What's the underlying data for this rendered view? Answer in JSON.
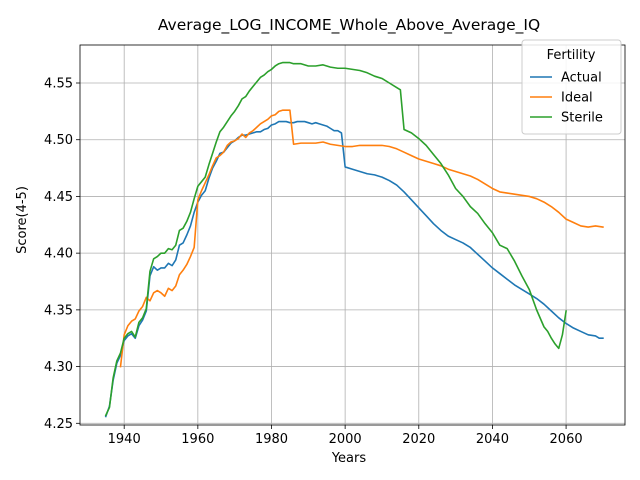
{
  "chart_data": {
    "type": "line",
    "title": "Average_LOG_INCOME_Whole_Above_Average_IQ",
    "xlabel": "Years",
    "ylabel": "Score(4-5)",
    "xlim": [
      1928,
      2076
    ],
    "ylim": [
      4.2485,
      4.5835
    ],
    "xticks": [
      1940,
      1960,
      1980,
      2000,
      2020,
      2040,
      2060
    ],
    "xtick_labels": [
      "1940",
      "1960",
      "1980",
      "2000",
      "2020",
      "2040",
      "2060"
    ],
    "yticks": [
      4.25,
      4.3,
      4.35,
      4.4,
      4.45,
      4.5,
      4.55
    ],
    "ytick_labels": [
      "4.25",
      "4.30",
      "4.35",
      "4.40",
      "4.45",
      "4.50",
      "4.55"
    ],
    "grid": true,
    "legend": {
      "title": "Fertility",
      "placement": "top-right"
    },
    "series": [
      {
        "name": "Actual",
        "color": "#1f77b4",
        "x": [
          1935,
          1936,
          1937,
          1938,
          1939,
          1940,
          1941,
          1942,
          1943,
          1944,
          1945,
          1946,
          1947,
          1948,
          1949,
          1950,
          1951,
          1952,
          1953,
          1954,
          1955,
          1956,
          1957,
          1958,
          1959,
          1960,
          1961,
          1962,
          1963,
          1964,
          1965,
          1966,
          1967,
          1968,
          1969,
          1970,
          1971,
          1972,
          1973,
          1974,
          1975,
          1976,
          1977,
          1978,
          1979,
          1980,
          1981,
          1982,
          1983,
          1984,
          1985,
          1986,
          1987,
          1988,
          1989,
          1990,
          1991,
          1992,
          1993,
          1994,
          1995,
          1996,
          1997,
          1998,
          1999,
          2000,
          2002,
          2004,
          2006,
          2008,
          2010,
          2012,
          2014,
          2016,
          2018,
          2020,
          2022,
          2024,
          2026,
          2028,
          2030,
          2032,
          2034,
          2036,
          2038,
          2040,
          2042,
          2044,
          2046,
          2048,
          2050,
          2052,
          2054,
          2056,
          2058,
          2060,
          2062,
          2064,
          2066,
          2068,
          2069,
          2070
        ],
        "values": [
          4.256,
          4.265,
          4.288,
          4.303,
          4.31,
          4.323,
          4.327,
          4.329,
          4.325,
          4.336,
          4.341,
          4.349,
          4.38,
          4.388,
          4.385,
          4.387,
          4.387,
          4.391,
          4.389,
          4.394,
          4.407,
          4.409,
          4.416,
          4.424,
          4.436,
          4.445,
          4.451,
          4.455,
          4.466,
          4.475,
          4.481,
          4.488,
          4.489,
          4.493,
          4.497,
          4.499,
          4.502,
          4.504,
          4.504,
          4.505,
          4.506,
          4.507,
          4.507,
          4.509,
          4.51,
          4.513,
          4.514,
          4.516,
          4.516,
          4.516,
          4.515,
          4.515,
          4.516,
          4.516,
          4.516,
          4.515,
          4.514,
          4.515,
          4.514,
          4.513,
          4.512,
          4.51,
          4.508,
          4.508,
          4.506,
          4.476,
          4.474,
          4.472,
          4.47,
          4.469,
          4.467,
          4.464,
          4.46,
          4.454,
          4.447,
          4.44,
          4.433,
          4.426,
          4.42,
          4.415,
          4.412,
          4.409,
          4.405,
          4.399,
          4.393,
          4.387,
          4.382,
          4.377,
          4.372,
          4.368,
          4.364,
          4.36,
          4.355,
          4.349,
          4.343,
          4.338,
          4.334,
          4.331,
          4.328,
          4.327,
          4.325,
          4.325
        ]
      },
      {
        "name": "Ideal",
        "color": "#ff7f0e",
        "x": [
          1939,
          1940,
          1941,
          1942,
          1943,
          1944,
          1945,
          1946,
          1947,
          1948,
          1949,
          1950,
          1951,
          1952,
          1953,
          1954,
          1955,
          1956,
          1957,
          1958,
          1959,
          1960,
          1961,
          1962,
          1963,
          1964,
          1965,
          1966,
          1967,
          1968,
          1969,
          1970,
          1971,
          1972,
          1973,
          1974,
          1975,
          1976,
          1977,
          1978,
          1979,
          1980,
          1981,
          1982,
          1983,
          1984,
          1985,
          1986,
          1988,
          1990,
          1992,
          1994,
          1996,
          1998,
          2000,
          2002,
          2004,
          2006,
          2008,
          2010,
          2012,
          2014,
          2016,
          2018,
          2020,
          2022,
          2024,
          2026,
          2028,
          2030,
          2032,
          2034,
          2036,
          2038,
          2040,
          2042,
          2044,
          2046,
          2048,
          2050,
          2052,
          2054,
          2056,
          2058,
          2060,
          2062,
          2064,
          2066,
          2068,
          2070
        ],
        "values": [
          4.3,
          4.328,
          4.336,
          4.34,
          4.342,
          4.349,
          4.353,
          4.361,
          4.358,
          4.365,
          4.367,
          4.365,
          4.362,
          4.369,
          4.367,
          4.371,
          4.381,
          4.385,
          4.39,
          4.397,
          4.405,
          4.447,
          4.455,
          4.462,
          4.469,
          4.477,
          4.484,
          4.486,
          4.489,
          4.495,
          4.498,
          4.499,
          4.501,
          4.505,
          4.502,
          4.506,
          4.508,
          4.511,
          4.514,
          4.516,
          4.518,
          4.521,
          4.522,
          4.525,
          4.526,
          4.526,
          4.526,
          4.496,
          4.497,
          4.497,
          4.497,
          4.498,
          4.496,
          4.495,
          4.494,
          4.494,
          4.495,
          4.495,
          4.495,
          4.495,
          4.494,
          4.492,
          4.489,
          4.486,
          4.483,
          4.481,
          4.479,
          4.477,
          4.474,
          4.472,
          4.47,
          4.468,
          4.465,
          4.461,
          4.457,
          4.454,
          4.453,
          4.452,
          4.451,
          4.45,
          4.448,
          4.445,
          4.441,
          4.436,
          4.43,
          4.427,
          4.424,
          4.423,
          4.424,
          4.423
        ]
      },
      {
        "name": "Sterile",
        "color": "#2ca02c",
        "x": [
          1935,
          1936,
          1937,
          1938,
          1939,
          1940,
          1941,
          1942,
          1943,
          1944,
          1945,
          1946,
          1947,
          1948,
          1949,
          1950,
          1951,
          1952,
          1953,
          1954,
          1955,
          1956,
          1957,
          1958,
          1959,
          1960,
          1961,
          1962,
          1963,
          1964,
          1965,
          1966,
          1967,
          1968,
          1969,
          1970,
          1971,
          1972,
          1973,
          1974,
          1975,
          1976,
          1977,
          1978,
          1979,
          1980,
          1981,
          1982,
          1983,
          1984,
          1985,
          1986,
          1988,
          1990,
          1992,
          1994,
          1996,
          1998,
          2000,
          2002,
          2004,
          2006,
          2008,
          2010,
          2012,
          2014,
          2015,
          2016,
          2018,
          2020,
          2022,
          2024,
          2026,
          2028,
          2030,
          2032,
          2034,
          2036,
          2038,
          2040,
          2042,
          2044,
          2046,
          2048,
          2050,
          2052,
          2054,
          2055,
          2056,
          2057,
          2058,
          2059,
          2060
        ],
        "values": [
          4.257,
          4.264,
          4.29,
          4.305,
          4.312,
          4.325,
          4.329,
          4.331,
          4.326,
          4.339,
          4.343,
          4.351,
          4.384,
          4.395,
          4.397,
          4.4,
          4.4,
          4.404,
          4.403,
          4.407,
          4.42,
          4.422,
          4.428,
          4.436,
          4.448,
          4.459,
          4.463,
          4.467,
          4.478,
          4.488,
          4.498,
          4.507,
          4.511,
          4.516,
          4.521,
          4.525,
          4.53,
          4.536,
          4.538,
          4.543,
          4.547,
          4.551,
          4.555,
          4.557,
          4.56,
          4.562,
          4.565,
          4.567,
          4.568,
          4.568,
          4.568,
          4.567,
          4.567,
          4.565,
          4.565,
          4.566,
          4.564,
          4.563,
          4.563,
          4.562,
          4.561,
          4.559,
          4.556,
          4.554,
          4.55,
          4.546,
          4.544,
          4.509,
          4.506,
          4.501,
          4.495,
          4.487,
          4.479,
          4.469,
          4.457,
          4.45,
          4.441,
          4.435,
          4.426,
          4.418,
          4.407,
          4.404,
          4.393,
          4.38,
          4.368,
          4.35,
          4.335,
          4.331,
          4.325,
          4.32,
          4.316,
          4.328,
          4.349
        ]
      }
    ]
  }
}
